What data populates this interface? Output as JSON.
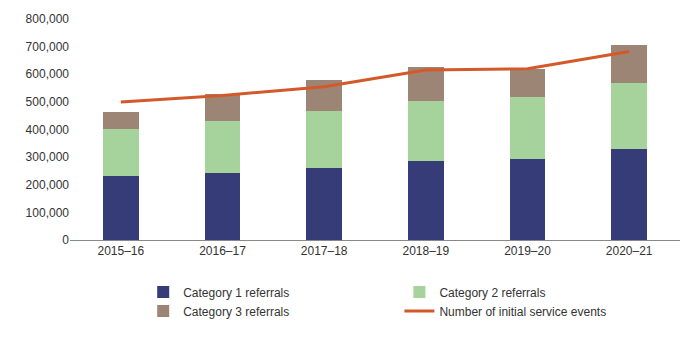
{
  "chart_data": {
    "type": "bar",
    "stacked": true,
    "categories": [
      "2015–16",
      "2016–17",
      "2017–18",
      "2018–19",
      "2019–20",
      "2020–21"
    ],
    "series": [
      {
        "name": "Category 1 referrals",
        "color": "#363c78",
        "values": [
          230000,
          243000,
          262000,
          287000,
          295000,
          330000
        ]
      },
      {
        "name": "Category 2 referrals",
        "color": "#a6d39c",
        "values": [
          172000,
          189000,
          206000,
          215000,
          223000,
          238000
        ]
      },
      {
        "name": "Category 3 referrals",
        "color": "#9d8576",
        "values": [
          61000,
          95000,
          110000,
          123000,
          100000,
          138000
        ]
      },
      {
        "name": "Number of initial service events",
        "type": "line",
        "color": "#d4592a",
        "values": [
          500000,
          523000,
          555000,
          615000,
          620000,
          682000
        ]
      }
    ],
    "ylim": [
      0,
      800000
    ],
    "yticks": [
      0,
      {
        "value": 100000,
        "label": "100,000"
      },
      {
        "value": 200000,
        "label": "200,000"
      },
      {
        "value": 300000,
        "label": "300,000"
      },
      {
        "value": 400000,
        "label": "400,000"
      },
      {
        "value": 500000,
        "label": "500,000"
      },
      {
        "value": 600000,
        "label": "600,000"
      },
      {
        "value": 700000,
        "label": "700,000"
      },
      {
        "value": 800000,
        "label": "800,000"
      }
    ],
    "grid": false,
    "legend": "bottom"
  }
}
